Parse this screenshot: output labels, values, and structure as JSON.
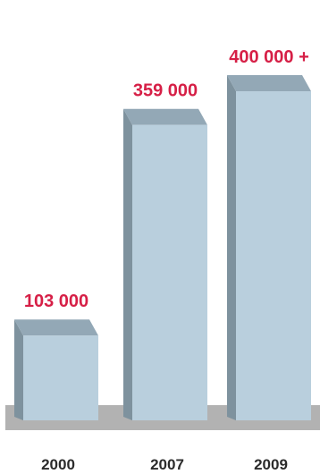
{
  "chart_data": {
    "type": "bar",
    "categories": [
      "2000",
      "2007",
      "2009"
    ],
    "values": [
      103000,
      359000,
      400000
    ],
    "data_labels": [
      "103 000",
      "359 000",
      "400 000 +"
    ],
    "title": "",
    "xlabel": "",
    "ylabel": "",
    "ylim": [
      0,
      400000
    ],
    "grid": false,
    "legend": "none"
  },
  "colors": {
    "bar_front": "#b9cfdd",
    "bar_top": "#93a8b6",
    "bar_side": "#7e929e",
    "floor": "#b2b2b2",
    "value_label": "#d61f46",
    "tick_label": "#2b2b2b"
  }
}
